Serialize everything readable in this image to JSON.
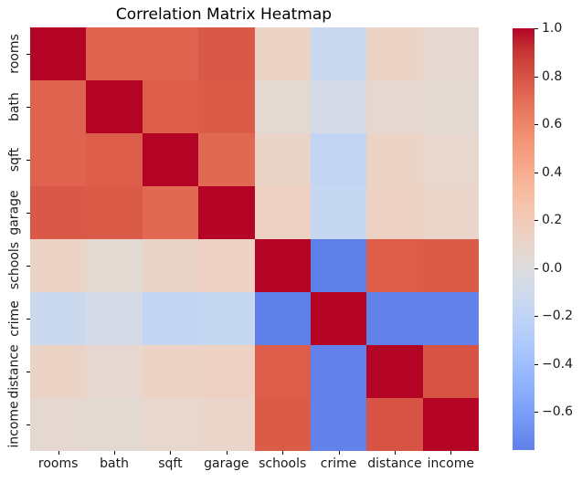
{
  "title": "Correlation Matrix Heatmap",
  "chart_data": {
    "type": "heatmap",
    "title": "Correlation Matrix Heatmap",
    "categories": [
      "rooms",
      "bath",
      "sqft",
      "garage",
      "schools",
      "crime",
      "distance",
      "income"
    ],
    "matrix": [
      [
        1.0,
        0.74,
        0.74,
        0.78,
        0.12,
        -0.13,
        0.12,
        0.06
      ],
      [
        0.74,
        1.0,
        0.76,
        0.77,
        0.05,
        -0.06,
        0.07,
        0.05
      ],
      [
        0.74,
        0.76,
        1.0,
        0.72,
        0.11,
        -0.18,
        0.12,
        0.08
      ],
      [
        0.78,
        0.77,
        0.72,
        1.0,
        0.14,
        -0.16,
        0.14,
        0.1
      ],
      [
        0.12,
        0.05,
        0.11,
        0.14,
        1.0,
        -0.76,
        0.76,
        0.77
      ],
      [
        -0.13,
        -0.06,
        -0.18,
        -0.16,
        -0.76,
        1.0,
        -0.75,
        -0.75
      ],
      [
        0.12,
        0.07,
        0.12,
        0.14,
        0.76,
        -0.75,
        1.0,
        0.8
      ],
      [
        0.06,
        0.05,
        0.08,
        0.1,
        0.77,
        -0.75,
        0.8,
        1.0
      ]
    ],
    "colormap": "coolwarm",
    "center": 0,
    "norm_range": [
      -1,
      1
    ],
    "vmin": -0.76,
    "vmax": 1.0,
    "grid": false,
    "legend_position": "right-colorbar",
    "colorbar_ticks": [
      {
        "value": 1.0,
        "label": "1.0"
      },
      {
        "value": 0.8,
        "label": "0.8"
      },
      {
        "value": 0.6,
        "label": "0.6"
      },
      {
        "value": 0.4,
        "label": "0.4"
      },
      {
        "value": 0.2,
        "label": "0.2"
      },
      {
        "value": 0.0,
        "label": "0.0"
      },
      {
        "value": -0.2,
        "label": "−0.2"
      },
      {
        "value": -0.4,
        "label": "−0.4"
      },
      {
        "value": -0.6,
        "label": "−0.6"
      }
    ]
  },
  "colors": {
    "max_red": "#b40426",
    "min_blue_shown": "#5f7fe8",
    "neutral_mid": "#dddddd",
    "background": "#ffffff",
    "tick_text": "#1a1a1a"
  }
}
